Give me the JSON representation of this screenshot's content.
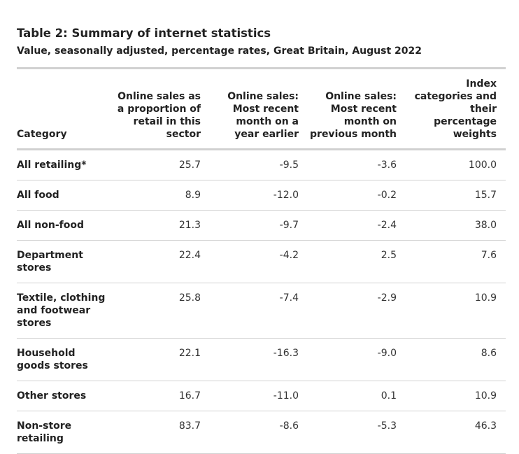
{
  "table": {
    "title": "Table 2: Summary of internet statistics",
    "subtitle": "Value, seasonally adjusted, percentage rates, Great Britain, August 2022",
    "headers": [
      "Category",
      "Online sales as a proportion of retail in this sector",
      "Online sales: Most recent month on a year earlier",
      "Online sales: Most recent month on previous month",
      "Index categories and their percentage weights"
    ],
    "rows": [
      {
        "category": "All retailing*",
        "values": [
          "25.7",
          "-9.5",
          "-3.6",
          "100.0"
        ]
      },
      {
        "category": "All food",
        "values": [
          "8.9",
          "-12.0",
          "-0.2",
          "15.7"
        ]
      },
      {
        "category": "All non-food",
        "values": [
          "21.3",
          "-9.7",
          "-2.4",
          "38.0"
        ]
      },
      {
        "category": "Department stores",
        "values": [
          "22.4",
          "-4.2",
          "2.5",
          "7.6"
        ]
      },
      {
        "category": "Textile, clothing and footwear stores",
        "values": [
          "25.8",
          "-7.4",
          "-2.9",
          "10.9"
        ]
      },
      {
        "category": "Household goods stores",
        "values": [
          "22.1",
          "-16.3",
          "-9.0",
          "8.6"
        ]
      },
      {
        "category": "Other stores",
        "values": [
          "16.7",
          "-11.0",
          "0.1",
          "10.9"
        ]
      },
      {
        "category": "Non-store retailing",
        "values": [
          "83.7",
          "-8.6",
          "-5.3",
          "46.3"
        ]
      }
    ]
  }
}
